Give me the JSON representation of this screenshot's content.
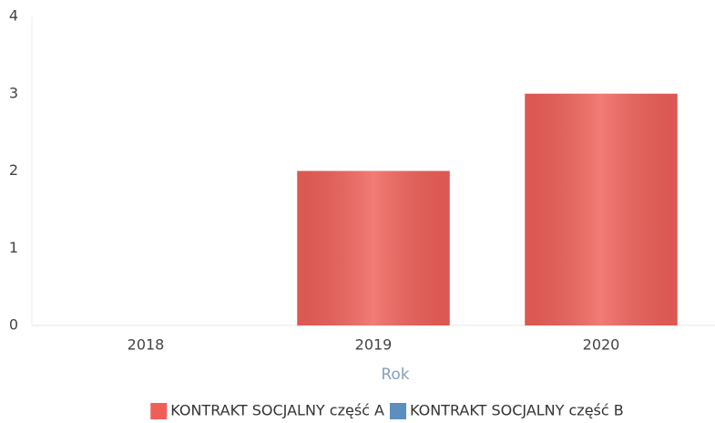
{
  "chart_data": {
    "type": "bar",
    "stacked": true,
    "x_label": "Rok",
    "categories": [
      "2018",
      "2019",
      "2020"
    ],
    "series": [
      {
        "name": "KONTRAKT SOCJALNY część A",
        "color": "#ef5f58",
        "values": [
          0,
          2,
          3
        ]
      },
      {
        "name": "KONTRAKT SOCJALNY część B",
        "color": "#5a8fc0",
        "values": [
          0,
          0,
          0
        ]
      }
    ],
    "ylim": [
      0,
      4
    ],
    "yticks": [
      0,
      1,
      2,
      3,
      4
    ],
    "grid": false,
    "legend": "bottom"
  }
}
